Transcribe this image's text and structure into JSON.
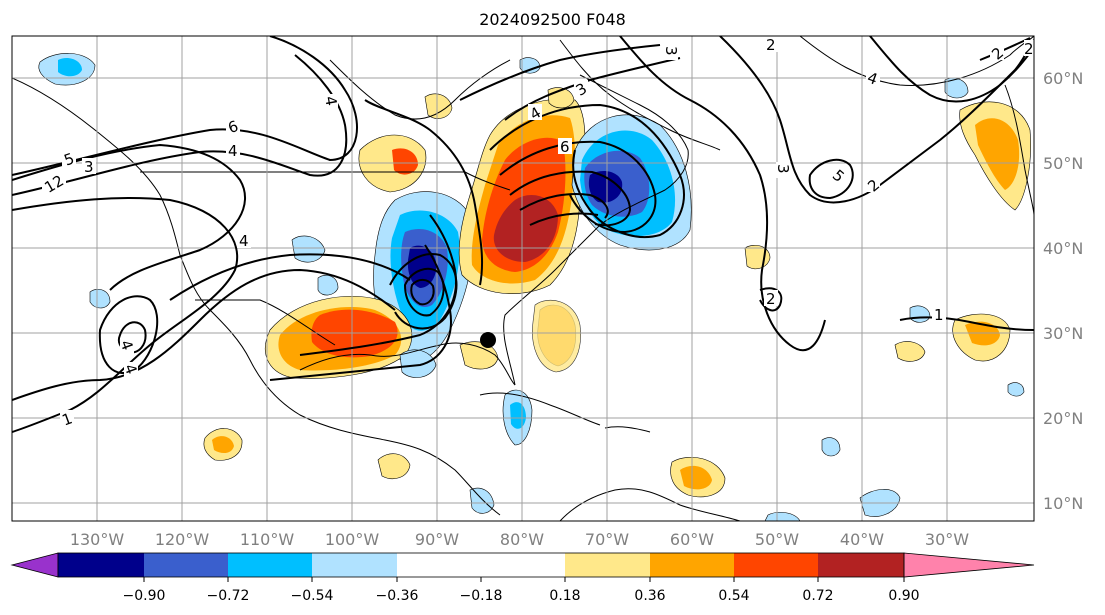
{
  "title": "2024092500 F048",
  "map": {
    "lon_labels": [
      "130°W",
      "120°W",
      "110°W",
      "100°W",
      "90°W",
      "80°W",
      "70°W",
      "60°W",
      "50°W",
      "40°W",
      "30°W"
    ],
    "lat_labels": [
      "60°N",
      "50°N",
      "40°N",
      "30°N",
      "20°N",
      "10°N"
    ],
    "contour_labels": [
      "6",
      "4",
      "5",
      "3",
      "12",
      "4",
      "4",
      "4",
      "1",
      "4",
      "6",
      "4",
      "3",
      "2",
      "2",
      "3",
      "3",
      "5",
      "2",
      "2",
      "1",
      "4",
      "2"
    ],
    "marker": "storm-position"
  },
  "colorbar": {
    "ticks": [
      "−0.90",
      "−0.72",
      "−0.54",
      "−0.36",
      "−0.18",
      "0.18",
      "0.36",
      "0.54",
      "0.72",
      "0.90"
    ],
    "colors": [
      "#9932cc",
      "#00008b",
      "#3a5fcd",
      "#00bfff",
      "#b0e2ff",
      "#ffffff",
      "#ffe88a",
      "#ffa500",
      "#ff4500",
      "#b22222",
      "#ff82ab"
    ]
  },
  "colors": {
    "neg_strong": "#00008b",
    "neg_mid": "#3a5fcd",
    "neg_light": "#00bfff",
    "neg_pale": "#b0e2ff",
    "pos_pale": "#ffe88a",
    "pos_light": "#ffa500",
    "pos_mid": "#ff4500",
    "pos_strong": "#b22222"
  }
}
